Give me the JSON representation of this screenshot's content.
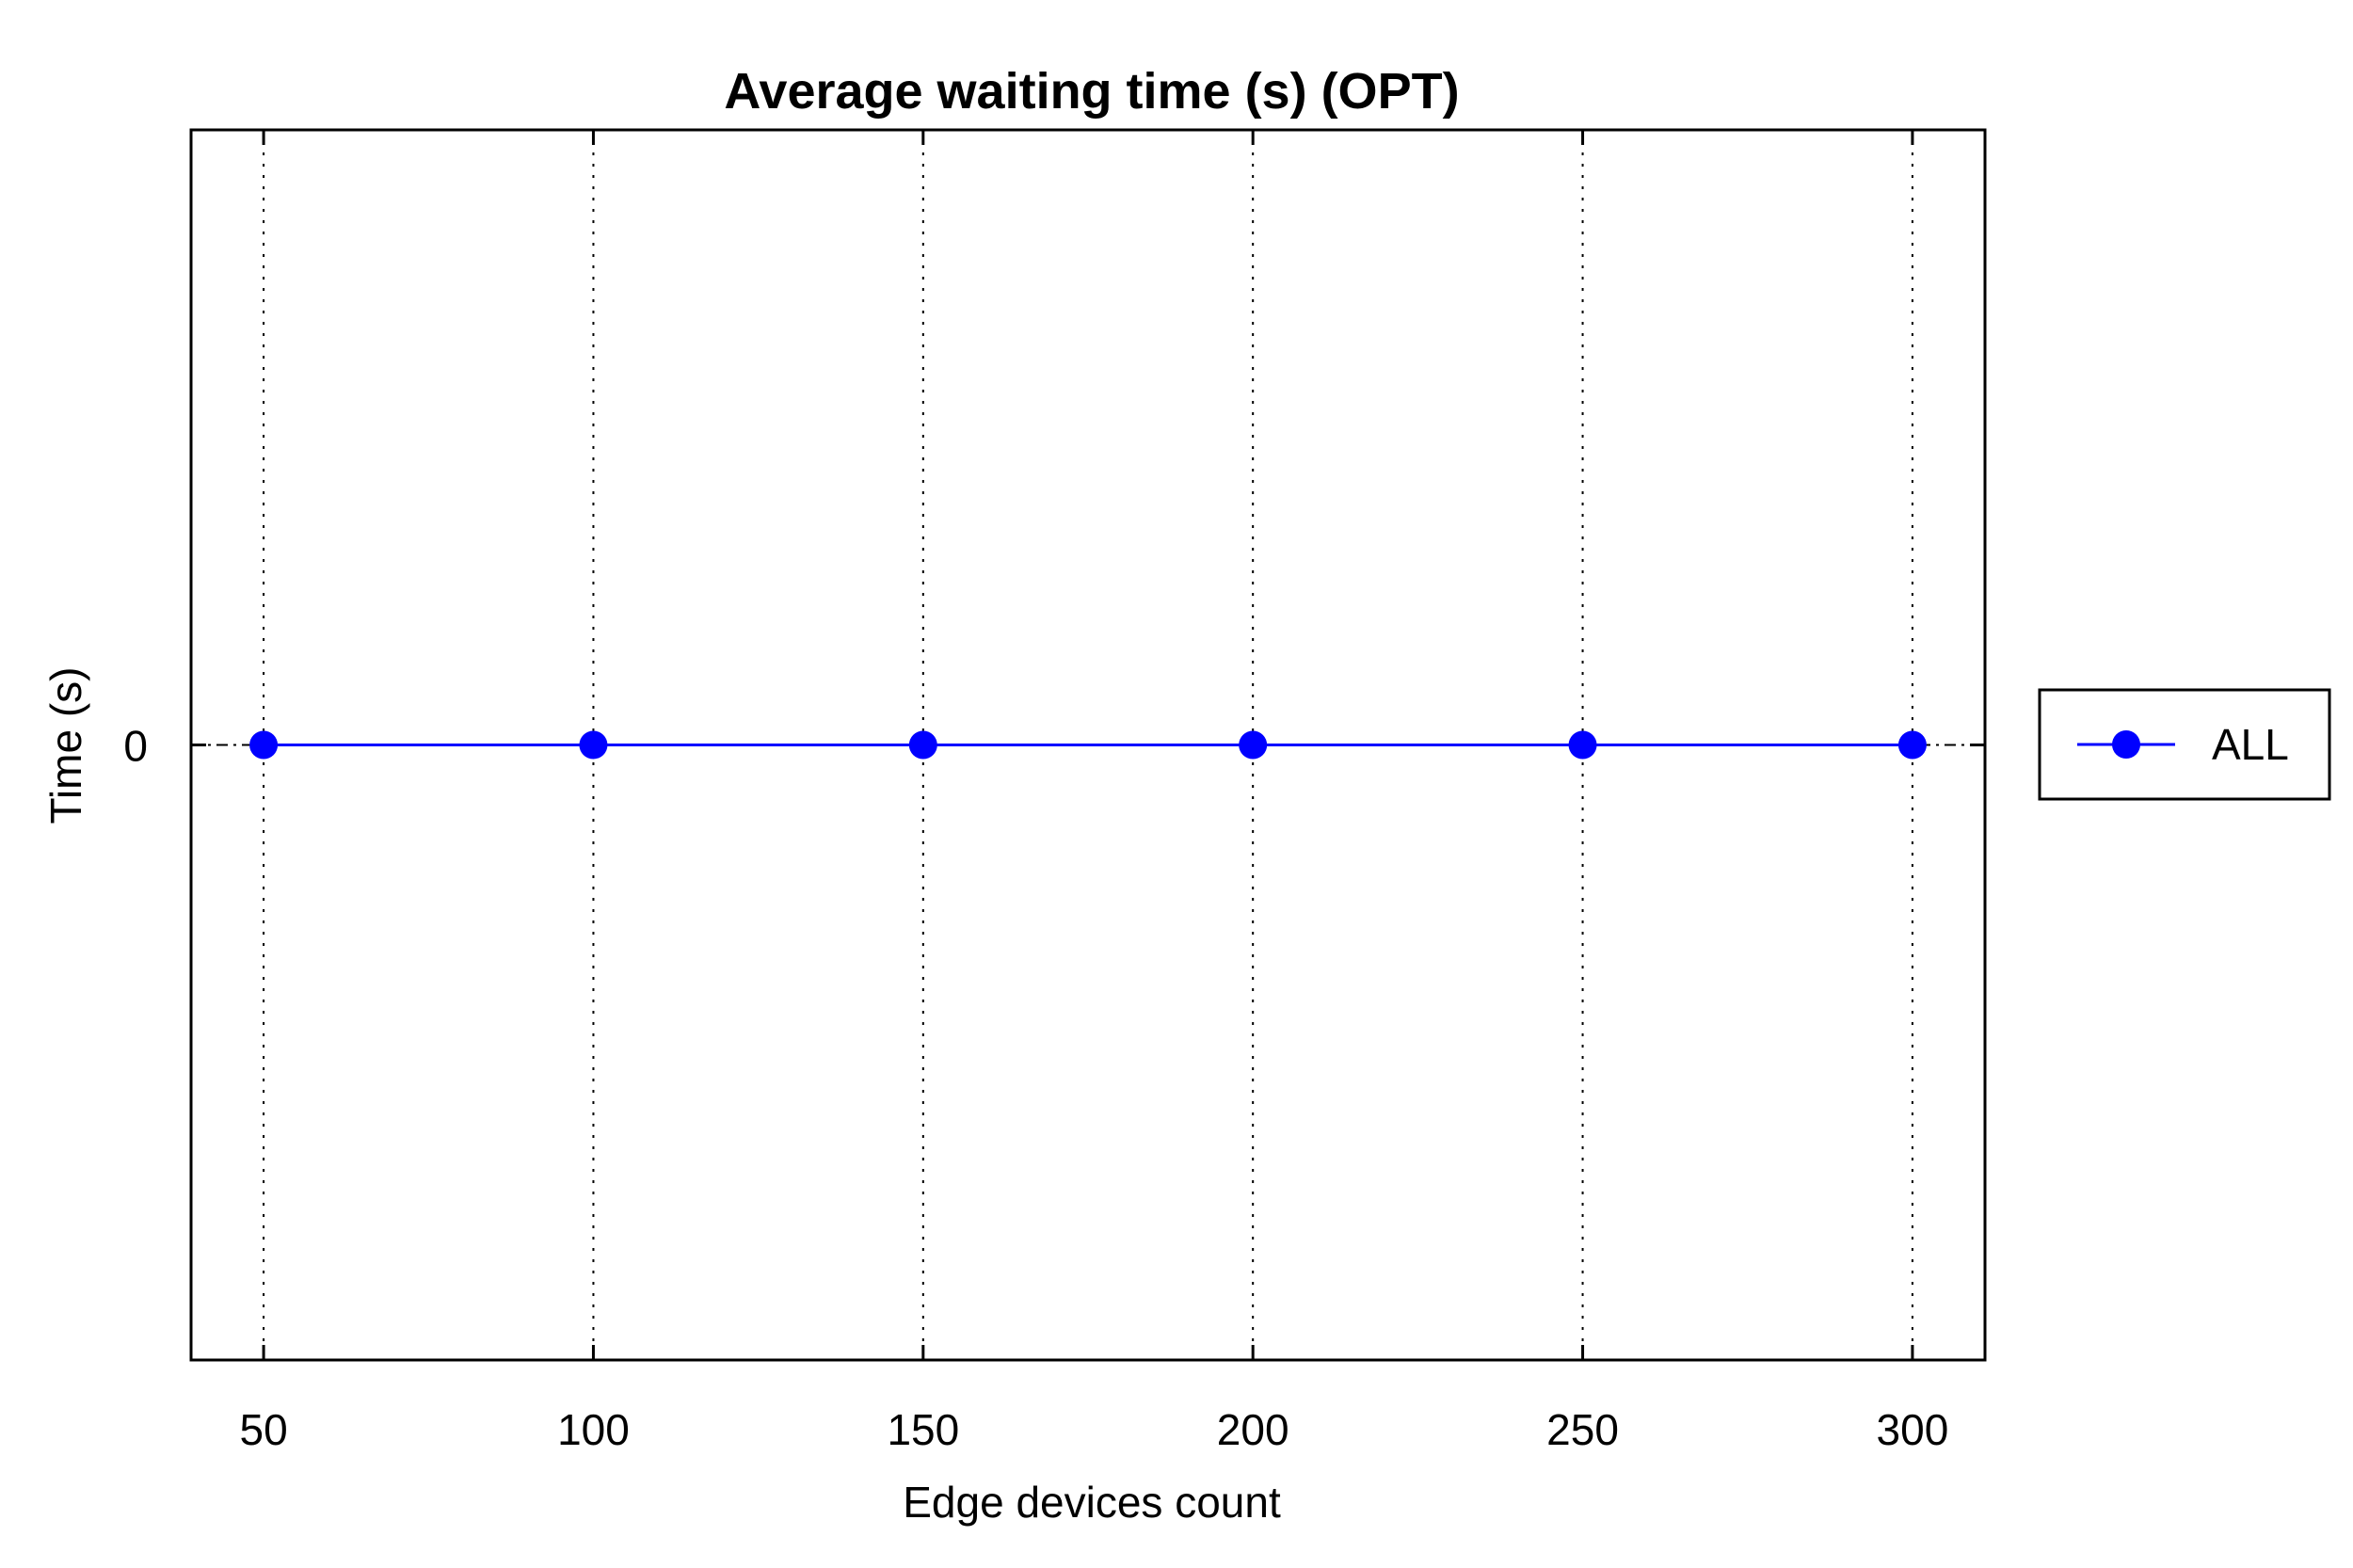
{
  "chart_data": {
    "type": "line",
    "title": "Average waiting time (s) (OPT)",
    "xlabel": "Edge devices count",
    "ylabel": "Time (s)",
    "x": [
      50,
      100,
      150,
      200,
      250,
      300
    ],
    "x_tick_labels": [
      "50",
      "100",
      "150",
      "200",
      "250",
      "300"
    ],
    "y_tick_labels": [
      "0"
    ],
    "xlim": [
      39,
      311
    ],
    "ylim": [
      -1,
      1
    ],
    "grid": "x-dotted",
    "legend_position": "outside-right",
    "series": [
      {
        "name": "ALL",
        "values": [
          0,
          0,
          0,
          0,
          0,
          0
        ],
        "color": "#0000ff",
        "marker": "circle"
      }
    ]
  }
}
